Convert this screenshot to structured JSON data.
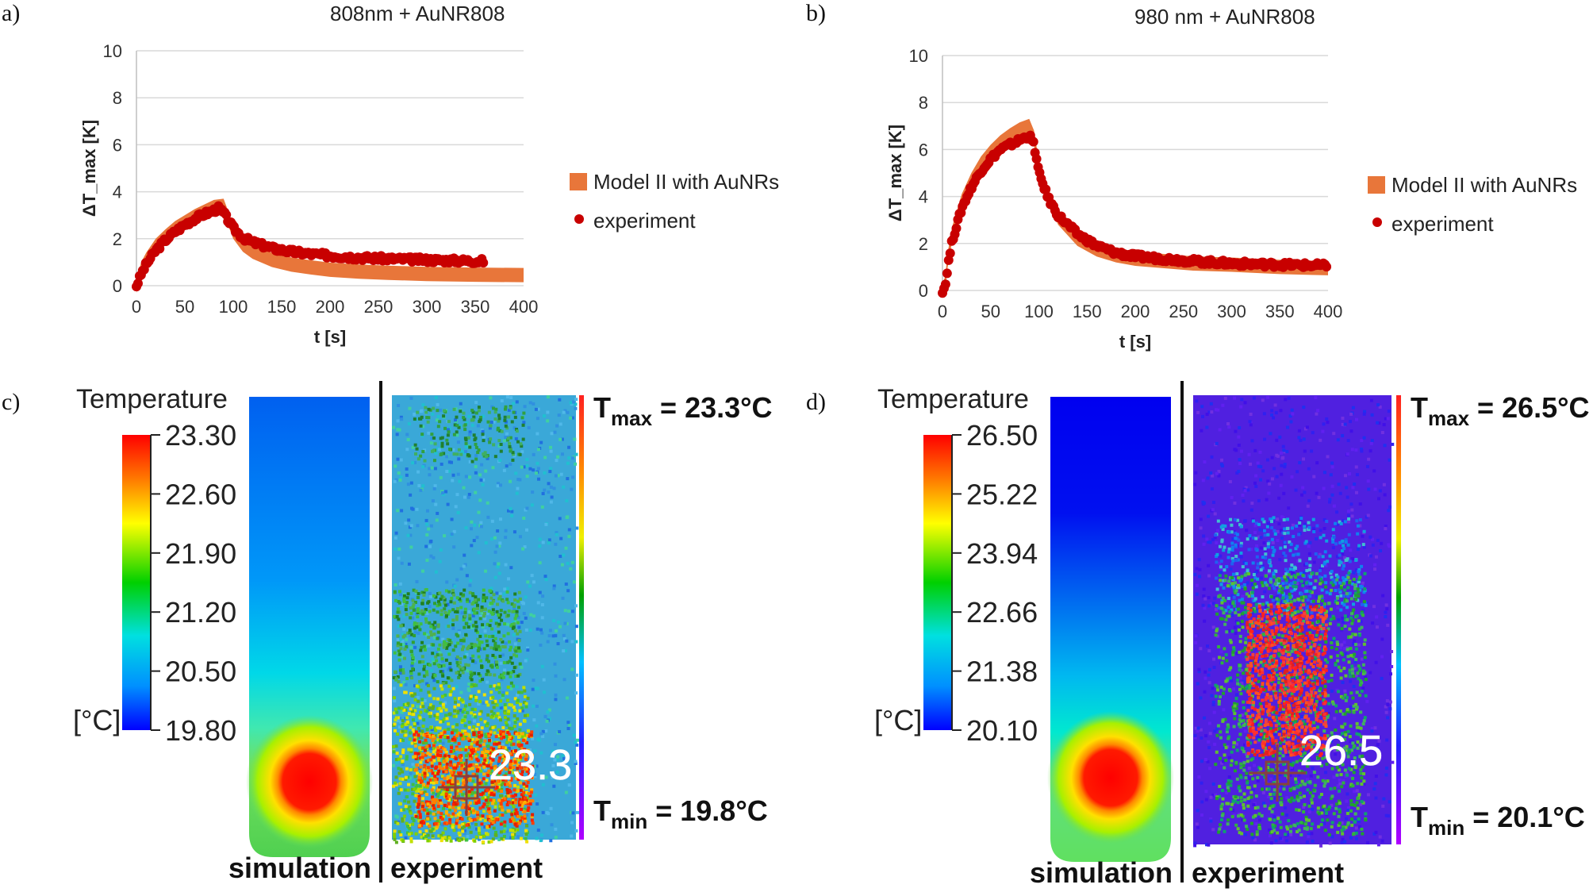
{
  "panel_labels": {
    "a": "a)",
    "b": "b)",
    "c": "c)",
    "d": "d)"
  },
  "chart_data": [
    {
      "type": "line",
      "title": "808nm + AuNR808",
      "xlabel": "t [s]",
      "ylabel": "ΔT_max [K]",
      "xlim": [
        0,
        400
      ],
      "ylim": [
        0,
        10
      ],
      "xticks": [
        "0",
        "50",
        "100",
        "150",
        "200",
        "250",
        "300",
        "350",
        "400"
      ],
      "yticks": [
        "0",
        "2",
        "4",
        "6",
        "8",
        "10"
      ],
      "grid": true,
      "legend": [
        "Model II with AuNRs",
        "experiment"
      ],
      "series": [
        {
          "name": "Model II with AuNRs",
          "style": "band",
          "color": "#E8763A",
          "x": [
            0,
            5,
            10,
            20,
            30,
            40,
            50,
            60,
            70,
            80,
            90,
            100,
            110,
            120,
            140,
            160,
            180,
            200,
            230,
            260,
            300,
            350,
            400
          ],
          "y": [
            0,
            0.7,
            1.1,
            1.7,
            2.1,
            2.45,
            2.7,
            2.95,
            3.15,
            3.35,
            3.4,
            2.3,
            1.75,
            1.45,
            1.1,
            0.9,
            0.78,
            0.68,
            0.6,
            0.55,
            0.5,
            0.47,
            0.45
          ]
        },
        {
          "name": "experiment",
          "style": "markers",
          "color": "#C80000",
          "x": [
            0,
            5,
            10,
            20,
            30,
            40,
            50,
            60,
            70,
            80,
            85,
            90,
            100,
            110,
            120,
            140,
            160,
            180,
            200,
            230,
            260,
            300,
            350,
            360
          ],
          "y": [
            0,
            0.5,
            0.9,
            1.5,
            1.95,
            2.3,
            2.6,
            2.85,
            3.05,
            3.2,
            3.3,
            3.1,
            2.45,
            2.05,
            1.85,
            1.6,
            1.45,
            1.35,
            1.28,
            1.2,
            1.15,
            1.1,
            1.05,
            1.05
          ]
        }
      ]
    },
    {
      "type": "line",
      "title": "980 nm + AuNR808",
      "xlabel": "t [s]",
      "ylabel": "ΔT_max [K]",
      "xlim": [
        0,
        400
      ],
      "ylim": [
        0,
        10
      ],
      "xticks": [
        "0",
        "50",
        "100",
        "150",
        "200",
        "250",
        "300",
        "350",
        "400"
      ],
      "yticks": [
        "0",
        "2",
        "4",
        "6",
        "8",
        "10"
      ],
      "grid": true,
      "legend": [
        "Model II with AuNRs",
        "experiment"
      ],
      "series": [
        {
          "name": "Model II with AuNRs",
          "style": "band",
          "color": "#E8763A",
          "x": [
            0,
            3,
            5,
            10,
            20,
            30,
            40,
            50,
            60,
            70,
            80,
            90,
            95,
            100,
            110,
            120,
            140,
            160,
            180,
            200,
            230,
            260,
            300,
            350,
            400
          ],
          "y": [
            0,
            0.3,
            1.2,
            2.4,
            3.8,
            4.7,
            5.4,
            5.9,
            6.3,
            6.6,
            6.85,
            7.0,
            6.5,
            5.2,
            4.0,
            3.1,
            2.2,
            1.75,
            1.5,
            1.35,
            1.25,
            1.15,
            1.1,
            1.0,
            0.95
          ]
        },
        {
          "name": "experiment",
          "style": "markers",
          "color": "#C80000",
          "x": [
            0,
            3,
            5,
            10,
            20,
            30,
            40,
            50,
            60,
            70,
            80,
            90,
            95,
            100,
            110,
            120,
            140,
            160,
            180,
            200,
            230,
            260,
            300,
            350,
            400
          ],
          "y": [
            0,
            0.2,
            0.9,
            2.1,
            3.5,
            4.4,
            5.1,
            5.6,
            6.0,
            6.2,
            6.4,
            6.6,
            6.2,
            5.0,
            3.9,
            3.2,
            2.4,
            1.9,
            1.6,
            1.45,
            1.35,
            1.25,
            1.15,
            1.1,
            1.05
          ]
        }
      ]
    },
    {
      "type": "heatmap",
      "colorbar_title": "Temperature",
      "colorbar_unit": "[°C]",
      "colorbar_ticks": [
        "23.30",
        "22.60",
        "21.90",
        "21.20",
        "20.50",
        "19.80"
      ],
      "overlay_value": "23.3",
      "tmax_value": " = 23.3°C",
      "tmin_value": " = 19.8°C",
      "labels": [
        "simulation",
        "experiment"
      ]
    },
    {
      "type": "heatmap",
      "colorbar_title": "Temperature",
      "colorbar_unit": "[°C]",
      "colorbar_ticks": [
        "26.50",
        "25.22",
        "23.94",
        "22.66",
        "21.38",
        "20.10"
      ],
      "overlay_value": "26.5",
      "tmax_value": " = 26.5°C",
      "tmin_value": " = 20.1°C",
      "labels": [
        "simulation",
        "experiment"
      ]
    }
  ],
  "tmax_T": "T",
  "tmax_sub": "max",
  "tmin_T": "T",
  "tmin_sub": "min",
  "colors": {
    "model": "#E8763A",
    "experiment": "#C80000"
  }
}
